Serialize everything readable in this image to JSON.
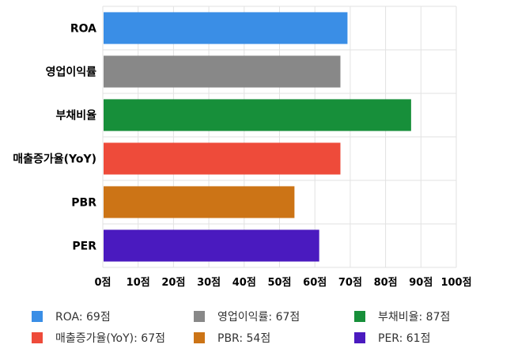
{
  "chart_data": {
    "type": "bar",
    "orientation": "horizontal",
    "categories": [
      "ROA",
      "영업이익률",
      "부채비율",
      "매출증가율(YoY)",
      "PBR",
      "PER"
    ],
    "values": [
      69,
      67,
      87,
      67,
      54,
      61
    ],
    "colors": [
      "#3a8ee6",
      "#888888",
      "#178f3a",
      "#ee4b3a",
      "#cc7416",
      "#4a1abf"
    ],
    "xlim": [
      0,
      100
    ],
    "xticks": [
      0,
      10,
      20,
      30,
      40,
      50,
      60,
      70,
      80,
      90,
      100
    ],
    "tick_suffix": "점",
    "grid": true,
    "legend_position": "bottom",
    "legend": [
      {
        "label": "ROA: 69점",
        "color": "#3a8ee6"
      },
      {
        "label": "영업이익률: 67점",
        "color": "#888888"
      },
      {
        "label": "부채비율: 87점",
        "color": "#178f3a"
      },
      {
        "label": "매출증가율(YoY): 67점",
        "color": "#ee4b3a"
      },
      {
        "label": "PBR: 54점",
        "color": "#cc7416"
      },
      {
        "label": "PER: 61점",
        "color": "#4a1abf"
      }
    ]
  }
}
